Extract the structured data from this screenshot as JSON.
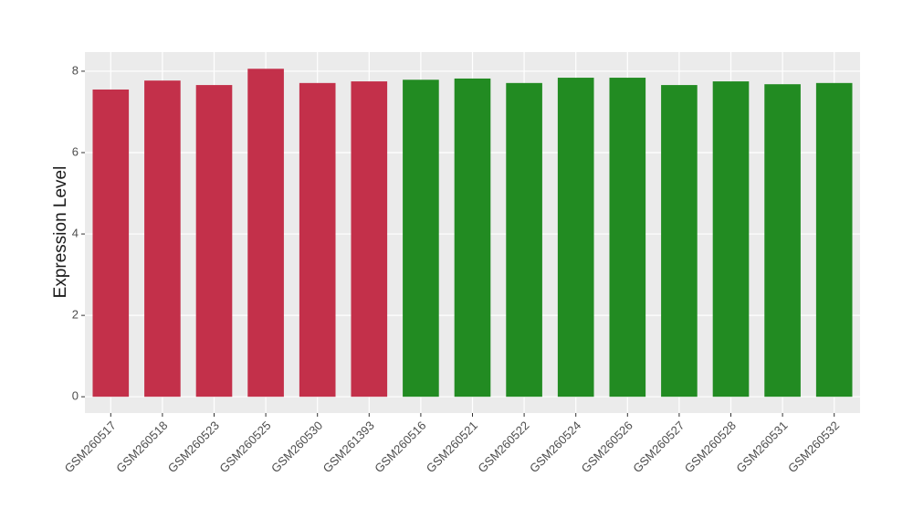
{
  "chart_data": {
    "type": "bar",
    "y_label": "Expression Level",
    "categories": [
      "GSM260517",
      "GSM260518",
      "GSM260523",
      "GSM260525",
      "GSM260530",
      "GSM261393",
      "GSM260516",
      "GSM260521",
      "GSM260522",
      "GSM260524",
      "GSM260526",
      "GSM260527",
      "GSM260528",
      "GSM260531",
      "GSM260532"
    ],
    "values": [
      7.55,
      7.77,
      7.66,
      8.06,
      7.71,
      7.75,
      7.79,
      7.82,
      7.71,
      7.84,
      7.84,
      7.66,
      7.75,
      7.68,
      7.71
    ],
    "colors": [
      "#c3304a",
      "#c3304a",
      "#c3304a",
      "#c3304a",
      "#c3304a",
      "#c3304a",
      "#228b22",
      "#228b22",
      "#228b22",
      "#228b22",
      "#228b22",
      "#228b22",
      "#228b22",
      "#228b22",
      "#228b22"
    ],
    "ylim": [
      -0.4,
      8.47
    ],
    "yticks": [
      0,
      2,
      4,
      6,
      8
    ],
    "grid": true,
    "panel_background": "#ebebeb"
  }
}
